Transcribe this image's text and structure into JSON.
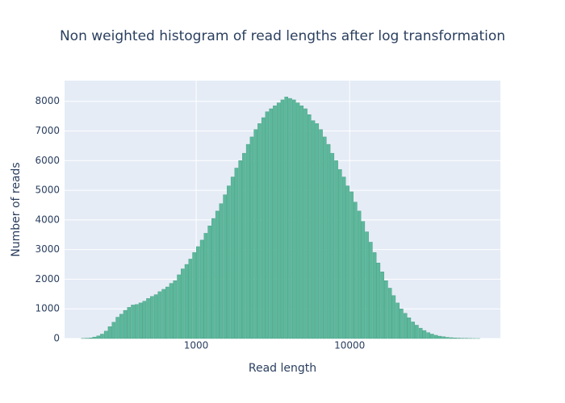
{
  "chart_data": {
    "type": "histogram",
    "title": "Non weighted histogram of read lengths after log transformation",
    "x_label": "Read length",
    "y_label": "Number of reads",
    "color": "#5cb89b",
    "grid": true,
    "x_log": true,
    "xlim": [
      139,
      96000
    ],
    "ylim": [
      0,
      8700
    ],
    "xticks": [
      1000,
      10000
    ],
    "yticks": [
      0,
      1000,
      2000,
      3000,
      4000,
      5000,
      6000,
      7000,
      8000
    ],
    "bins": [
      158,
      168,
      178,
      188,
      200,
      211,
      224,
      237,
      251,
      266,
      282,
      299,
      316,
      335,
      355,
      376,
      398,
      422,
      447,
      473,
      501,
      531,
      562,
      596,
      631,
      668,
      708,
      750,
      794,
      841,
      891,
      944,
      1000,
      1059,
      1122,
      1189,
      1259,
      1334,
      1413,
      1496,
      1585,
      1679,
      1778,
      1884,
      1995,
      2113,
      2239,
      2371,
      2512,
      2661,
      2818,
      2985,
      3162,
      3350,
      3548,
      3758,
      3981,
      4217,
      4467,
      4732,
      5012,
      5309,
      5623,
      5957,
      6310,
      6683,
      7079,
      7499,
      7943,
      8414,
      8913,
      9441,
      10000,
      10593,
      11220,
      11885,
      12589,
      13335,
      14125,
      14962,
      15849,
      16788,
      17783,
      18836,
      19953,
      21135,
      22387,
      23714,
      25119,
      26607,
      28184,
      29854,
      31623,
      33497,
      35481,
      37584,
      39811,
      42170,
      44668,
      47315,
      50119,
      53088,
      56234,
      59566,
      63096,
      66834,
      70795
    ],
    "counts": [
      0,
      0,
      5,
      10,
      20,
      50,
      90,
      150,
      250,
      400,
      550,
      720,
      820,
      950,
      1050,
      1130,
      1150,
      1200,
      1260,
      1350,
      1420,
      1480,
      1580,
      1660,
      1740,
      1860,
      1950,
      2150,
      2350,
      2500,
      2680,
      2900,
      3100,
      3320,
      3550,
      3800,
      4050,
      4300,
      4550,
      4850,
      5150,
      5450,
      5750,
      6000,
      6250,
      6550,
      6800,
      7050,
      7250,
      7450,
      7650,
      7750,
      7850,
      7950,
      8050,
      8150,
      8100,
      8050,
      7950,
      7850,
      7750,
      7550,
      7350,
      7250,
      7050,
      6800,
      6550,
      6250,
      6000,
      5700,
      5450,
      5150,
      4950,
      4600,
      4300,
      3950,
      3600,
      3250,
      2900,
      2550,
      2250,
      1950,
      1700,
      1450,
      1200,
      1000,
      850,
      700,
      560,
      450,
      350,
      270,
      200,
      150,
      110,
      80,
      60,
      40,
      28,
      20,
      14,
      9,
      6,
      4,
      2,
      1
    ]
  }
}
